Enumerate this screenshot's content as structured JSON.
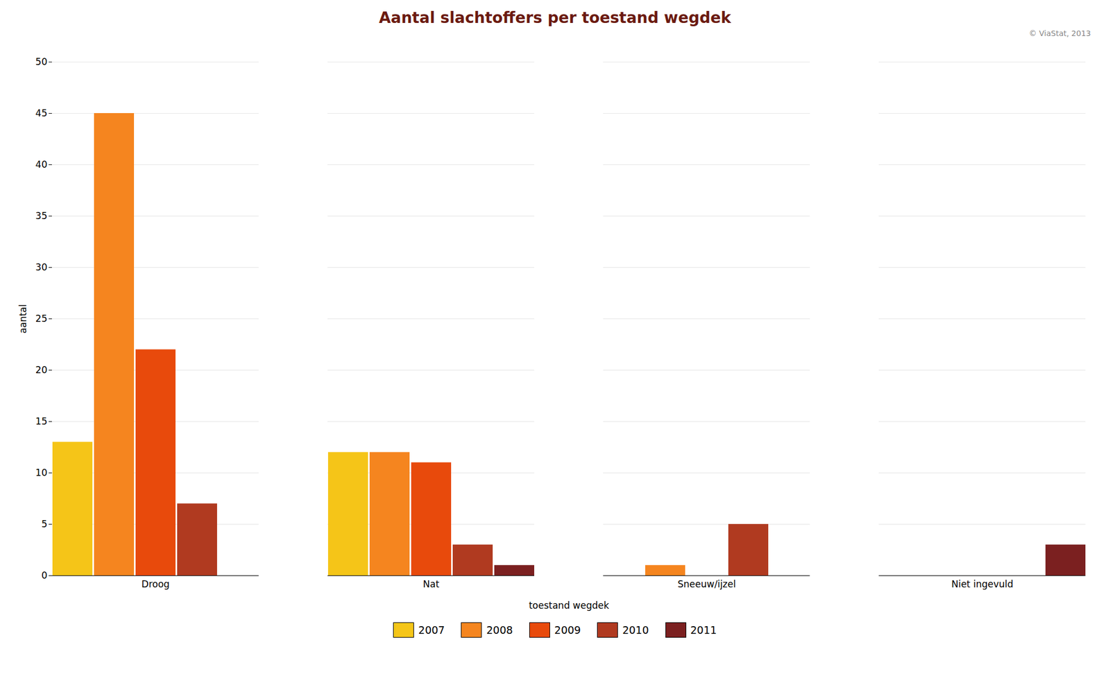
{
  "chart_data": {
    "type": "bar",
    "title": "Aantal slachtoffers per toestand wegdek",
    "xlabel": "toestand wegdek",
    "ylabel": "aantal",
    "categories": [
      "Droog",
      "Nat",
      "Sneeuw/ijzel",
      "Niet ingevuld"
    ],
    "series": [
      {
        "name": "2007",
        "color": "#F5C518",
        "values": [
          13,
          12,
          0,
          0
        ]
      },
      {
        "name": "2008",
        "color": "#F5851F",
        "values": [
          45,
          12,
          1,
          0
        ]
      },
      {
        "name": "2009",
        "color": "#E84A0C",
        "values": [
          22,
          11,
          0,
          0
        ]
      },
      {
        "name": "2010",
        "color": "#B03A20",
        "values": [
          7,
          3,
          5,
          0
        ]
      },
      {
        "name": "2011",
        "color": "#7B2020",
        "values": [
          0,
          1,
          0,
          3
        ]
      }
    ],
    "ylim": [
      0,
      50
    ],
    "yticks": [
      0,
      5,
      10,
      15,
      20,
      25,
      30,
      35,
      40,
      45,
      50
    ],
    "grid": true,
    "legend": "bottom",
    "annotations": [
      "© ViaStat, 2013"
    ]
  }
}
